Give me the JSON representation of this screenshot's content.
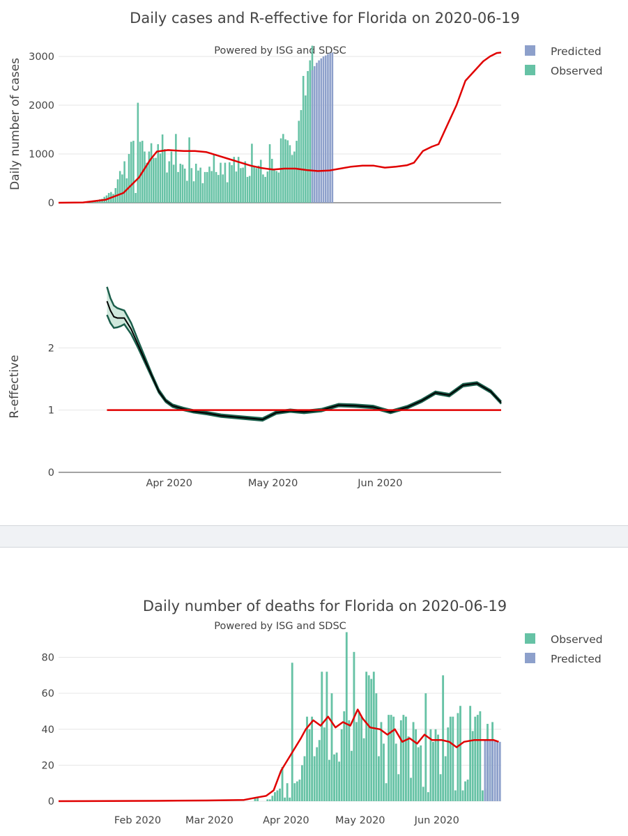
{
  "colors": {
    "observed": "#66c2a5",
    "predicted": "#8da0cb",
    "line": "#e00000",
    "reff_band": "#1b5e4b",
    "reff_fill": "#cfe8dc",
    "reff_mid": "#000000"
  },
  "chart_data": [
    {
      "type": "bar",
      "title": "Daily cases and R-effective for Florida on 2020-06-19",
      "subtitle": "Powered by ISG and SDSC",
      "ylabel": "Daily number of cases",
      "ylim": [
        0,
        3300
      ],
      "yticks": [
        "0",
        "1000",
        "2000",
        "3000"
      ],
      "legend": [
        {
          "label": "Predicted",
          "color": "#8da0cb"
        },
        {
          "label": "Observed",
          "color": "#66c2a5"
        }
      ],
      "observed": {
        "start_day": 59,
        "values": [
          0,
          0,
          0,
          0,
          0,
          0,
          0,
          0,
          0,
          2,
          4,
          5,
          6,
          8,
          10,
          20,
          30,
          50,
          70,
          80,
          120,
          150,
          200,
          220,
          180,
          300,
          480,
          650,
          580,
          850,
          500,
          1000,
          1250,
          1270,
          200,
          2050,
          1250,
          1270,
          1050,
          820,
          1050,
          1220,
          920,
          920,
          1200,
          1010,
          1400,
          1100,
          620,
          850,
          1050,
          780,
          1410,
          630,
          800,
          780,
          700,
          450,
          1340,
          710,
          440,
          800,
          660,
          720,
          400,
          630,
          630,
          740,
          650,
          1000,
          630,
          570,
          820,
          580,
          820,
          420,
          830,
          770,
          940,
          640,
          940,
          710,
          720,
          850,
          530,
          550,
          1210,
          760,
          710,
          760,
          880,
          580,
          530,
          640,
          1200,
          900,
          700,
          650,
          620,
          1320,
          1410,
          1300,
          1280,
          1180,
          980,
          1050,
          1270,
          1680,
          1900,
          2600,
          2200,
          2700,
          2920,
          3220
        ],
        "name": "Observed"
      },
      "predicted": {
        "start_day": 172,
        "values": [
          2720,
          2800,
          2870,
          2920,
          2960,
          3000,
          3020,
          3050,
          3070,
          3080
        ],
        "name": "Predicted"
      },
      "trend": [
        [
          59,
          0
        ],
        [
          70,
          5
        ],
        [
          80,
          60
        ],
        [
          88,
          200
        ],
        [
          95,
          520
        ],
        [
          100,
          880
        ],
        [
          103,
          1050
        ],
        [
          108,
          1080
        ],
        [
          115,
          1060
        ],
        [
          120,
          1060
        ],
        [
          125,
          1040
        ],
        [
          130,
          970
        ],
        [
          135,
          900
        ],
        [
          140,
          830
        ],
        [
          145,
          760
        ],
        [
          150,
          710
        ],
        [
          155,
          680
        ],
        [
          160,
          700
        ],
        [
          165,
          700
        ],
        [
          170,
          670
        ],
        [
          175,
          650
        ],
        [
          180,
          660
        ],
        [
          185,
          700
        ],
        [
          190,
          740
        ],
        [
          195,
          760
        ],
        [
          200,
          760
        ],
        [
          205,
          720
        ],
        [
          210,
          740
        ],
        [
          215,
          770
        ],
        [
          218,
          820
        ],
        [
          222,
          1060
        ],
        [
          226,
          1150
        ],
        [
          229,
          1200
        ],
        [
          233,
          1600
        ],
        [
          237,
          2000
        ],
        [
          241,
          2500
        ],
        [
          245,
          2700
        ],
        [
          249,
          2900
        ],
        [
          252,
          3000
        ],
        [
          255,
          3070
        ],
        [
          257,
          3080
        ]
      ],
      "x_start_day": 59,
      "x_end_day": 257
    },
    {
      "type": "line",
      "ylabel": "R-effective",
      "ylim": [
        0,
        3.0
      ],
      "yticks": [
        "0",
        "1",
        "2"
      ],
      "xticks": [
        {
          "day": 91,
          "label": "Apr 2020"
        },
        {
          "day": 121,
          "label": "May 2020"
        },
        {
          "day": 152,
          "label": "Jun 2020"
        }
      ],
      "x_start_day": 73,
      "x_end_day": 187,
      "reference_line": 1,
      "series": [
        {
          "name": "R-effective",
          "x": [
            73,
            74,
            75,
            76,
            77,
            78,
            80,
            82,
            84,
            86,
            88,
            90,
            92,
            95,
            98,
            102,
            106,
            110,
            114,
            118,
            122,
            126,
            130,
            135,
            140,
            145,
            150,
            155,
            160,
            164,
            168,
            172,
            176,
            180,
            184,
            187
          ],
          "mid": [
            2.75,
            2.6,
            2.5,
            2.48,
            2.48,
            2.48,
            2.3,
            2.05,
            1.8,
            1.55,
            1.3,
            1.15,
            1.07,
            1.02,
            0.98,
            0.95,
            0.91,
            0.89,
            0.87,
            0.85,
            0.96,
            0.99,
            0.97,
            1.0,
            1.08,
            1.07,
            1.05,
            0.97,
            1.05,
            1.15,
            1.28,
            1.24,
            1.4,
            1.43,
            1.3,
            1.12
          ],
          "lo": [
            2.53,
            2.4,
            2.32,
            2.33,
            2.35,
            2.38,
            2.22,
            2.0,
            1.76,
            1.52,
            1.28,
            1.13,
            1.05,
            1.0,
            0.96,
            0.93,
            0.89,
            0.87,
            0.85,
            0.83,
            0.94,
            0.97,
            0.95,
            0.98,
            1.06,
            1.05,
            1.03,
            0.95,
            1.03,
            1.13,
            1.26,
            1.22,
            1.38,
            1.41,
            1.28,
            1.1
          ],
          "hi": [
            2.98,
            2.8,
            2.68,
            2.64,
            2.62,
            2.6,
            2.4,
            2.12,
            1.85,
            1.58,
            1.33,
            1.17,
            1.09,
            1.04,
            1.0,
            0.97,
            0.93,
            0.91,
            0.89,
            0.87,
            0.98,
            1.01,
            0.99,
            1.02,
            1.1,
            1.09,
            1.07,
            0.99,
            1.07,
            1.17,
            1.3,
            1.26,
            1.42,
            1.45,
            1.32,
            1.14
          ]
        }
      ]
    },
    {
      "type": "bar",
      "title": "Daily number of deaths for Florida on 2020-06-19",
      "subtitle": "Powered by ISG and SDSC",
      "ylabel": "",
      "ylim": [
        0,
        93
      ],
      "yticks": [
        "0",
        "20",
        "40",
        "60",
        "80"
      ],
      "xticks": [
        {
          "day": 32,
          "label": "Feb 2020"
        },
        {
          "day": 61,
          "label": "Mar 2020"
        },
        {
          "day": 92,
          "label": "Apr 2020"
        },
        {
          "day": 122,
          "label": "May 2020"
        },
        {
          "day": 153,
          "label": "Jun 2020"
        }
      ],
      "legend": [
        {
          "label": "Observed",
          "color": "#66c2a5"
        },
        {
          "label": "Predicted",
          "color": "#8da0cb"
        }
      ],
      "observed": {
        "start_day": 77,
        "values": [
          0,
          0,
          2,
          2,
          0,
          0,
          0,
          1,
          1,
          3,
          5,
          6,
          7,
          19,
          2,
          10,
          2,
          77,
          10,
          11,
          12,
          20,
          25,
          47,
          40,
          47,
          25,
          30,
          34,
          72,
          41,
          72,
          23,
          60,
          26,
          27,
          22,
          40,
          50,
          94,
          45,
          28,
          83,
          44,
          50,
          47,
          35,
          72,
          70,
          68,
          72,
          60,
          25,
          44,
          32,
          10,
          48,
          48,
          47,
          32,
          15,
          45,
          48,
          47,
          36,
          13,
          44,
          40,
          30,
          31,
          8,
          60,
          5,
          40,
          33,
          40,
          37,
          15,
          70,
          25,
          41,
          47,
          47,
          6,
          49,
          53,
          6,
          11,
          12,
          53,
          39,
          47,
          48,
          50,
          6,
          7,
          43,
          25,
          44
        ],
        "name": "Observed"
      },
      "predicted": {
        "start_day": 172,
        "values": [
          34,
          34,
          34,
          34,
          34,
          33,
          33
        ],
        "name": "Predicted"
      },
      "trend": [
        [
          0,
          0
        ],
        [
          40,
          0.2
        ],
        [
          60,
          0.4
        ],
        [
          75,
          0.7
        ],
        [
          80,
          2
        ],
        [
          84,
          3
        ],
        [
          87,
          6
        ],
        [
          90,
          17
        ],
        [
          94,
          26
        ],
        [
          98,
          35
        ],
        [
          100,
          40
        ],
        [
          103,
          45
        ],
        [
          106,
          42
        ],
        [
          109,
          47
        ],
        [
          112,
          41
        ],
        [
          115,
          44
        ],
        [
          118,
          42
        ],
        [
          121,
          51
        ],
        [
          123,
          46
        ],
        [
          126,
          41
        ],
        [
          130,
          40
        ],
        [
          133,
          37
        ],
        [
          136,
          40
        ],
        [
          139,
          33
        ],
        [
          142,
          35
        ],
        [
          145,
          32
        ],
        [
          148,
          37
        ],
        [
          151,
          34
        ],
        [
          155,
          34
        ],
        [
          158,
          33
        ],
        [
          161,
          30
        ],
        [
          164,
          33
        ],
        [
          168,
          34
        ],
        [
          172,
          34
        ],
        [
          176,
          34
        ],
        [
          178,
          33
        ]
      ],
      "x_start_day": 0,
      "x_end_day": 179
    }
  ]
}
